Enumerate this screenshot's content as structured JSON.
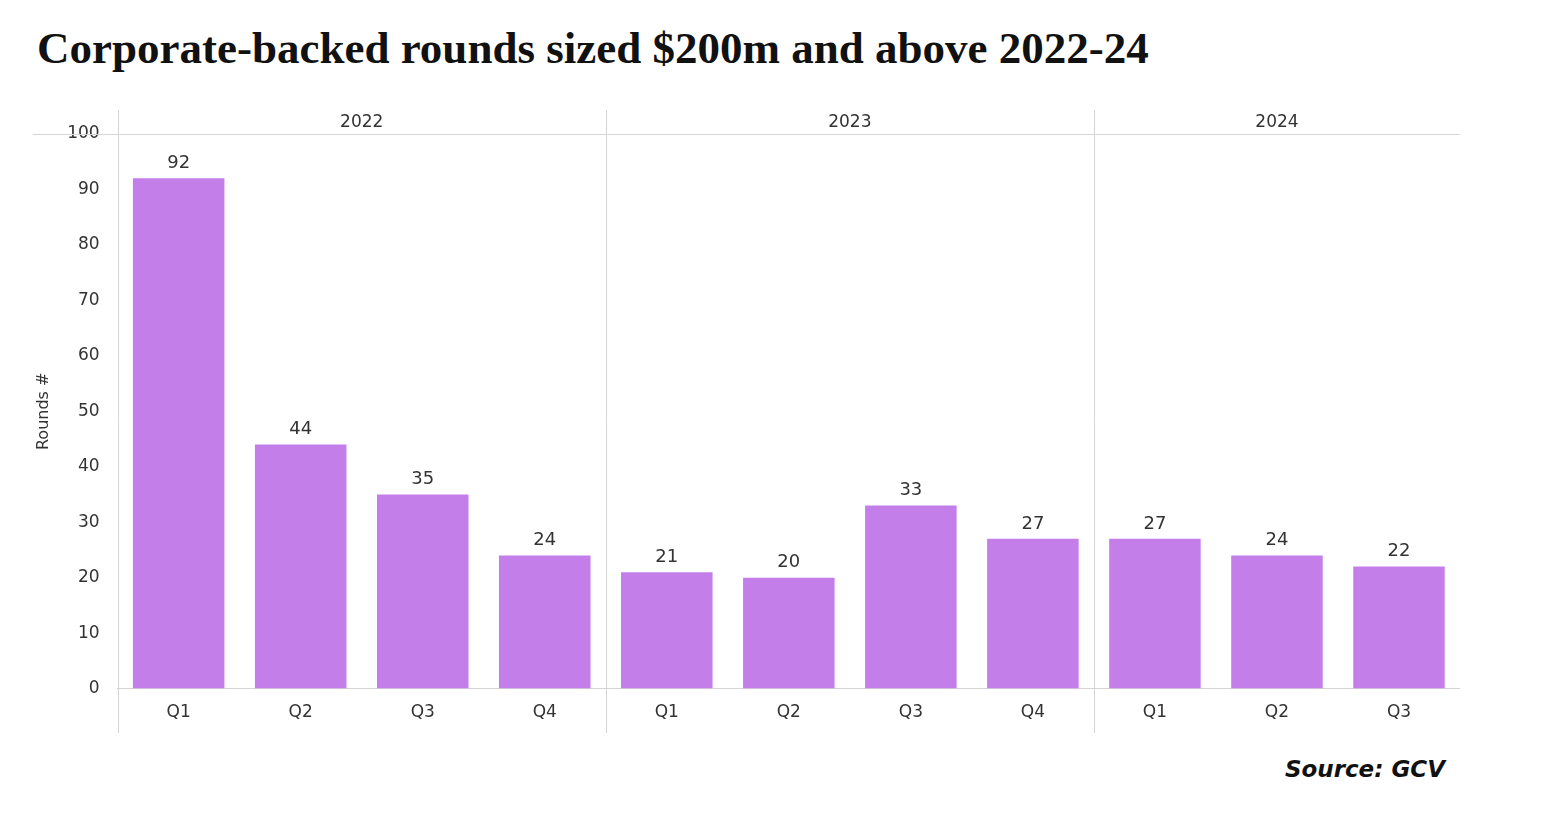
{
  "chart_data": {
    "type": "bar",
    "title": "Corporate-backed rounds sized $200m and above 2022-24",
    "y_label": "Rounds #",
    "source": "Source: GCV",
    "groups": [
      "2022",
      "2022",
      "2022",
      "2022",
      "2023",
      "2023",
      "2023",
      "2023",
      "2024",
      "2024",
      "2024"
    ],
    "categories": [
      "Q1",
      "Q2",
      "Q3",
      "Q4",
      "Q1",
      "Q2",
      "Q3",
      "Q4",
      "Q1",
      "Q2",
      "Q3"
    ],
    "values": [
      92,
      44,
      35,
      24,
      21,
      20,
      33,
      27,
      27,
      24,
      22
    ],
    "color": "#c47eea",
    "ylim": [
      0,
      100
    ],
    "yticks": [
      0,
      10,
      20,
      30,
      40,
      50,
      60,
      70,
      80,
      90,
      100
    ],
    "grid": false,
    "data_labels": true
  }
}
